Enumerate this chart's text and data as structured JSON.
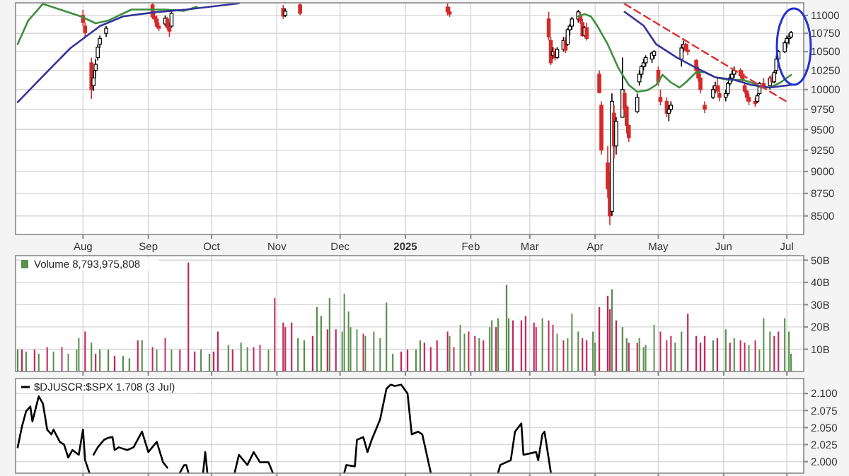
{
  "chart_data": [
    {
      "type": "candlestick",
      "log": true,
      "grid": true,
      "xlim": [
        "2024-06-30",
        "2025-07-09"
      ],
      "xticks": [
        {
          "value": "2024-08-01",
          "label": "Aug"
        },
        {
          "value": "2024-09-01",
          "label": "Sep"
        },
        {
          "value": "2024-10-01",
          "label": "Oct"
        },
        {
          "value": "2024-11-01",
          "label": "Nov"
        },
        {
          "value": "2024-12-01",
          "label": "Dec"
        },
        {
          "value": "2025-01-01",
          "label": "2025"
        },
        {
          "value": "2025-02-01",
          "label": "Feb"
        },
        {
          "value": "2025-03-01",
          "label": "Mar"
        },
        {
          "value": "2025-04-01",
          "label": "Apr"
        },
        {
          "value": "2025-05-01",
          "label": "May"
        },
        {
          "value": "2025-06-01",
          "label": "Jun"
        },
        {
          "value": "2025-07-01",
          "label": "Jul"
        }
      ],
      "ylim": [
        8300,
        11180
      ],
      "yticks": [
        8500,
        8750,
        9000,
        9250,
        9500,
        9750,
        10000,
        10250,
        10500,
        10750,
        11000
      ],
      "x": [
        "2024-08-01",
        "2024-08-02",
        "2024-08-05",
        "2024-08-06",
        "2024-08-07",
        "2024-08-08",
        "2024-08-09",
        "2024-08-12",
        "2024-09-03",
        "2024-09-04",
        "2024-09-05",
        "2024-09-06",
        "2024-09-09",
        "2024-09-10",
        "2024-09-11",
        "2024-09-12",
        "2024-11-04",
        "2024-11-05",
        "2024-11-12",
        "2025-01-21",
        "2025-01-22",
        "2025-03-10",
        "2025-03-11",
        "2025-03-12",
        "2025-03-13",
        "2025-03-14",
        "2025-03-17",
        "2025-03-18",
        "2025-03-19",
        "2025-03-20",
        "2025-03-21",
        "2025-03-24",
        "2025-03-25",
        "2025-03-26",
        "2025-03-27",
        "2025-03-28",
        "2025-04-03",
        "2025-04-04",
        "2025-04-07",
        "2025-04-08",
        "2025-04-09",
        "2025-04-10",
        "2025-04-11",
        "2025-04-14",
        "2025-04-15",
        "2025-04-16",
        "2025-04-17",
        "2025-04-21",
        "2025-04-22",
        "2025-04-23",
        "2025-04-24",
        "2025-04-25",
        "2025-04-28",
        "2025-04-29",
        "2025-05-01",
        "2025-05-02",
        "2025-05-05",
        "2025-05-06",
        "2025-05-07",
        "2025-05-12",
        "2025-05-13",
        "2025-05-14",
        "2025-05-15",
        "2025-05-19",
        "2025-05-20",
        "2025-05-21",
        "2025-05-23",
        "2025-05-27",
        "2025-05-28",
        "2025-05-29",
        "2025-05-30",
        "2025-06-02",
        "2025-06-03",
        "2025-06-04",
        "2025-06-05",
        "2025-06-06",
        "2025-06-09",
        "2025-06-10",
        "2025-06-11",
        "2025-06-12",
        "2025-06-13",
        "2025-06-16",
        "2025-06-17",
        "2025-06-18",
        "2025-06-20",
        "2025-06-23",
        "2025-06-24",
        "2025-06-25",
        "2025-06-26",
        "2025-06-27",
        "2025-06-30",
        "2025-07-01",
        "2025-07-02",
        "2025-07-03"
      ],
      "ohlc": [
        [
          11000,
          11080,
          10850,
          10900
        ],
        [
          10850,
          10900,
          10700,
          10760
        ],
        [
          10350,
          10420,
          9880,
          10000
        ],
        [
          10050,
          10250,
          9980,
          10150
        ],
        [
          10250,
          10400,
          10150,
          10330
        ],
        [
          10420,
          10600,
          10380,
          10560
        ],
        [
          10600,
          10720,
          10550,
          10680
        ],
        [
          10750,
          10850,
          10700,
          10820
        ],
        [
          11150,
          11170,
          10950,
          10980
        ],
        [
          10980,
          11050,
          10900,
          10950
        ],
        [
          10950,
          11000,
          10820,
          10850
        ],
        [
          10850,
          10900,
          10780,
          10820
        ],
        [
          10880,
          11000,
          10850,
          10960
        ],
        [
          10950,
          10980,
          10800,
          10830
        ],
        [
          10830,
          10900,
          10700,
          10780
        ],
        [
          10850,
          11060,
          10830,
          11030
        ],
        [
          11100,
          11150,
          10950,
          10990
        ],
        [
          11000,
          11100,
          10980,
          11060
        ],
        [
          11150,
          11170,
          11000,
          11030
        ],
        [
          11120,
          11170,
          11000,
          11050
        ],
        [
          11050,
          11120,
          10980,
          11020
        ],
        [
          10950,
          11050,
          10650,
          10700
        ],
        [
          10650,
          10700,
          10320,
          10350
        ],
        [
          10450,
          10560,
          10400,
          10500
        ],
        [
          10500,
          10550,
          10380,
          10420
        ],
        [
          10420,
          10560,
          10400,
          10530
        ],
        [
          10530,
          10700,
          10500,
          10650
        ],
        [
          10650,
          10700,
          10480,
          10520
        ],
        [
          10600,
          10820,
          10580,
          10800
        ],
        [
          10800,
          10880,
          10720,
          10850
        ],
        [
          10850,
          10980,
          10800,
          10950
        ],
        [
          10950,
          11080,
          10900,
          11050
        ],
        [
          11000,
          11050,
          10880,
          10920
        ],
        [
          10900,
          10950,
          10700,
          10720
        ],
        [
          10720,
          10850,
          10700,
          10830
        ],
        [
          10830,
          10900,
          10650,
          10680
        ],
        [
          10200,
          10250,
          9950,
          9960
        ],
        [
          9800,
          9850,
          9200,
          9250
        ],
        [
          9100,
          9300,
          8700,
          8800
        ],
        [
          8900,
          9000,
          8400,
          8500
        ],
        [
          8550,
          9950,
          8500,
          9850
        ],
        [
          9700,
          9800,
          9150,
          9300
        ],
        [
          9300,
          9650,
          9200,
          9600
        ],
        [
          9650,
          10420,
          9650,
          10000
        ],
        [
          9950,
          10000,
          9700,
          9750
        ],
        [
          9780,
          9800,
          9450,
          9550
        ],
        [
          9550,
          9560,
          9350,
          9400
        ],
        [
          9720,
          9950,
          9700,
          9900
        ],
        [
          10100,
          10250,
          10050,
          10200
        ],
        [
          10200,
          10320,
          10150,
          10300
        ],
        [
          10300,
          10400,
          10250,
          10350
        ],
        [
          10350,
          10450,
          10300,
          10420
        ],
        [
          10400,
          10500,
          10350,
          10480
        ],
        [
          10450,
          10520,
          10400,
          10500
        ],
        [
          10250,
          10300,
          10050,
          10100
        ],
        [
          9900,
          10000,
          9800,
          9850
        ],
        [
          9850,
          9900,
          9650,
          9700
        ],
        [
          9700,
          9800,
          9600,
          9750
        ],
        [
          9750,
          9850,
          9720,
          9800
        ],
        [
          10400,
          10600,
          10300,
          10550
        ],
        [
          10550,
          10650,
          10500,
          10600
        ],
        [
          10600,
          10620,
          10500,
          10520
        ],
        [
          10520,
          10600,
          10450,
          10500
        ],
        [
          10380,
          10400,
          10200,
          10250
        ],
        [
          10250,
          10300,
          10100,
          10150
        ],
        [
          10150,
          10200,
          9950,
          10000
        ],
        [
          9800,
          9850,
          9700,
          9750
        ],
        [
          9900,
          10050,
          9880,
          10000
        ],
        [
          10000,
          10100,
          9950,
          10050
        ],
        [
          10050,
          10150,
          9950,
          9980
        ],
        [
          9950,
          10050,
          9850,
          9900
        ],
        [
          9900,
          10000,
          9850,
          9950
        ],
        [
          9950,
          10100,
          9920,
          10080
        ],
        [
          10080,
          10200,
          10050,
          10150
        ],
        [
          10150,
          10250,
          10100,
          10200
        ],
        [
          10200,
          10300,
          10150,
          10250
        ],
        [
          10250,
          10280,
          10150,
          10180
        ],
        [
          10200,
          10250,
          10100,
          10120
        ],
        [
          10050,
          10100,
          9950,
          9980
        ],
        [
          9980,
          10000,
          9850,
          9900
        ],
        [
          9900,
          9950,
          9800,
          9850
        ],
        [
          9850,
          9900,
          9780,
          9820
        ],
        [
          9850,
          9950,
          9830,
          9920
        ],
        [
          9950,
          10100,
          9930,
          10080
        ],
        [
          10080,
          10150,
          10020,
          10050
        ],
        [
          10050,
          10180,
          10000,
          10150
        ],
        [
          10150,
          10200,
          10080,
          10100
        ],
        [
          10100,
          10250,
          10080,
          10220
        ],
        [
          10250,
          10450,
          10200,
          10400
        ],
        [
          10400,
          10520,
          10350,
          10500
        ],
        [
          10500,
          10650,
          10480,
          10620
        ],
        [
          10620,
          10720,
          10550,
          10680
        ],
        [
          10680,
          10750,
          10600,
          10700
        ],
        [
          10700,
          10780,
          10680,
          10760
        ]
      ],
      "colors": [
        "#d42a2a",
        "#d42a2a",
        "#d42a2a",
        "#000000",
        "#000000",
        "#000000",
        "#000000",
        "#000000",
        "#d42a2a",
        "#d42a2a",
        "#d42a2a",
        "#d42a2a",
        "#000000",
        "#d42a2a",
        "#d42a2a",
        "#000000",
        "#d42a2a",
        "#000000",
        "#d42a2a",
        "#d42a2a",
        "#d42a2a",
        "#d42a2a",
        "#d42a2a",
        "#000000",
        "#d42a2a",
        "#000000",
        "#000000",
        "#d42a2a",
        "#000000",
        "#000000",
        "#000000",
        "#000000",
        "#d42a2a",
        "#d42a2a",
        "#000000",
        "#d42a2a",
        "#d42a2a",
        "#d42a2a",
        "#d42a2a",
        "#d42a2a",
        "#000000",
        "#d42a2a",
        "#000000",
        "#000000",
        "#d42a2a",
        "#d42a2a",
        "#d42a2a",
        "#000000",
        "#000000",
        "#000000",
        "#000000",
        "#000000",
        "#000000",
        "#000000",
        "#d42a2a",
        "#d42a2a",
        "#d42a2a",
        "#000000",
        "#000000",
        "#000000",
        "#000000",
        "#d42a2a",
        "#d42a2a",
        "#d42a2a",
        "#d42a2a",
        "#d42a2a",
        "#d42a2a",
        "#000000",
        "#000000",
        "#d42a2a",
        "#d42a2a",
        "#000000",
        "#000000",
        "#000000",
        "#000000",
        "#000000",
        "#d42a2a",
        "#d42a2a",
        "#d42a2a",
        "#d42a2a",
        "#d42a2a",
        "#d42a2a",
        "#000000",
        "#000000",
        "#d42a2a",
        "#000000",
        "#d42a2a",
        "#000000",
        "#000000",
        "#000000",
        "#000000",
        "#000000",
        "#000000",
        "#000000"
      ],
      "series": [
        {
          "type": "line",
          "color": "#3f8f3f",
          "x": [
            "2024-07-01",
            "2024-07-06",
            "2024-07-13",
            "2024-07-31",
            "2024-08-07",
            "2024-08-13",
            "2024-08-24",
            "2024-09-09",
            "2024-09-18",
            "2024-09-24",
            "2025-03-18",
            "2025-03-24",
            "2025-03-27",
            "2025-03-30",
            "2025-04-02",
            "2025-04-07",
            "2025-04-12",
            "2025-04-17",
            "2025-04-21",
            "2025-04-26",
            "2025-04-30",
            "2025-05-03",
            "2025-05-07",
            "2025-05-11",
            "2025-05-14",
            "2025-05-19",
            "2025-05-23",
            "2025-05-28",
            "2025-06-03",
            "2025-06-10",
            "2025-06-14",
            "2025-06-19",
            "2025-06-23",
            "2025-06-28",
            "2025-07-03"
          ],
          "values": [
            10602,
            10928,
            11165,
            10986,
            10889,
            10928,
            11084,
            11084,
            11065,
            11124,
            null,
            10986,
            11020,
            10986,
            10857,
            10600,
            10283,
            10060,
            9972,
            9992,
            10060,
            10191,
            10092,
            10026,
            10092,
            10226,
            10226,
            10159,
            10126,
            10126,
            10092,
            10026,
            10026,
            10092,
            10191
          ]
        },
        {
          "type": "line",
          "color": "#33339a",
          "x": [
            "2024-07-01",
            "2024-07-15",
            "2024-07-26",
            "2024-08-09",
            "2024-08-20",
            "2024-09-04",
            "2024-09-19",
            "2024-10-14",
            "2025-04-08",
            "2025-04-15",
            "2025-04-24",
            "2025-04-30",
            "2025-05-10",
            "2025-05-19",
            "2025-05-28",
            "2025-06-06",
            "2025-06-14",
            "2025-06-23",
            "2025-07-03"
          ],
          "values": [
            9839,
            10231,
            10546,
            10850,
            10986,
            11045,
            11084,
            11173,
            null,
            11051,
            10857,
            10600,
            10416,
            10283,
            10159,
            10126,
            10060,
            10026,
            10060
          ]
        },
        {
          "type": "line",
          "color": "#e03030",
          "line_style": "dashed",
          "x": [
            "2025-04-15",
            "2025-07-01"
          ],
          "values": [
            11165,
            9844
          ]
        }
      ]
    },
    {
      "type": "bar",
      "grid": true,
      "tick_labels": "y",
      "legend": "top left",
      "xlim": [
        "2024-06-30",
        "2025-07-09"
      ],
      "xticks": [
        "2024-08-01",
        "2024-09-01",
        "2024-10-01",
        "2024-11-01",
        "2024-12-01",
        "2025-01-01",
        "2025-02-01",
        "2025-03-01",
        "2025-04-01",
        "2025-05-01",
        "2025-06-01",
        "2025-07-01"
      ],
      "ylim": [
        0,
        52
      ],
      "yticks": [
        {
          "value": 10,
          "label": "10B"
        },
        {
          "value": 20,
          "label": "20B"
        },
        {
          "value": 30,
          "label": "30B"
        },
        {
          "value": 40,
          "label": "40B"
        },
        {
          "value": 50,
          "label": "50B"
        }
      ],
      "x": [
        "2024-07-01",
        "2024-07-03",
        "2024-07-05",
        "2024-07-09",
        "2024-07-11",
        "2024-07-15",
        "2024-07-18",
        "2024-07-22",
        "2024-07-25",
        "2024-07-29",
        "2024-07-30",
        "2024-08-02",
        "2024-08-05",
        "2024-08-07",
        "2024-08-09",
        "2024-08-13",
        "2024-08-16",
        "2024-08-20",
        "2024-08-23",
        "2024-08-27",
        "2024-08-29",
        "2024-09-03",
        "2024-09-05",
        "2024-09-09",
        "2024-09-12",
        "2024-09-16",
        "2024-09-20",
        "2024-09-23",
        "2024-09-26",
        "2024-09-30",
        "2024-10-02",
        "2024-10-04",
        "2024-10-09",
        "2024-10-11",
        "2024-10-15",
        "2024-10-18",
        "2024-10-21",
        "2024-10-24",
        "2024-10-28",
        "2024-10-31",
        "2024-11-04",
        "2024-11-05",
        "2024-11-08",
        "2024-11-11",
        "2024-11-14",
        "2024-11-18",
        "2024-11-20",
        "2024-11-22",
        "2024-11-25",
        "2024-11-26",
        "2024-11-29",
        "2024-12-02",
        "2024-12-03",
        "2024-12-05",
        "2024-12-06",
        "2024-12-09",
        "2024-12-12",
        "2024-12-13",
        "2024-12-17",
        "2024-12-20",
        "2024-12-23",
        "2024-12-26",
        "2024-12-30",
        "2025-01-02",
        "2025-01-06",
        "2025-01-08",
        "2025-01-10",
        "2025-01-13",
        "2025-01-16",
        "2025-01-21",
        "2025-01-22",
        "2025-01-24",
        "2025-01-27",
        "2025-01-29",
        "2025-01-31",
        "2025-02-03",
        "2025-02-05",
        "2025-02-07",
        "2025-02-10",
        "2025-02-11",
        "2025-02-13",
        "2025-02-14",
        "2025-02-18",
        "2025-02-19",
        "2025-02-21",
        "2025-02-25",
        "2025-02-27",
        "2025-03-03",
        "2025-03-04",
        "2025-03-07",
        "2025-03-10",
        "2025-03-12",
        "2025-03-14",
        "2025-03-17",
        "2025-03-19",
        "2025-03-21",
        "2025-03-24",
        "2025-03-26",
        "2025-03-28",
        "2025-03-31",
        "2025-04-01",
        "2025-04-03",
        "2025-04-07",
        "2025-04-08",
        "2025-04-09",
        "2025-04-11",
        "2025-04-14",
        "2025-04-16",
        "2025-04-17",
        "2025-04-21",
        "2025-04-22",
        "2025-04-24",
        "2025-04-25",
        "2025-04-29",
        "2025-05-02",
        "2025-05-05",
        "2025-05-07",
        "2025-05-09",
        "2025-05-12",
        "2025-05-15",
        "2025-05-19",
        "2025-05-21",
        "2025-05-23",
        "2025-05-27",
        "2025-05-29",
        "2025-06-02",
        "2025-06-04",
        "2025-06-06",
        "2025-06-09",
        "2025-06-11",
        "2025-06-13",
        "2025-06-16",
        "2025-06-18",
        "2025-06-20",
        "2025-06-23",
        "2025-06-25",
        "2025-06-27",
        "2025-06-30",
        "2025-07-02",
        "2025-07-03"
      ],
      "series": [
        {
          "name": "Volume 8,793,975,808",
          "values": [
            10,
            10,
            9,
            10,
            8,
            11,
            9,
            11,
            8,
            10,
            15,
            18,
            13,
            8,
            10,
            10,
            7,
            7,
            6,
            14,
            14,
            11,
            10,
            15,
            10,
            10,
            49,
            9,
            10,
            8,
            9,
            18,
            12,
            10,
            13,
            11,
            11,
            12,
            10,
            33,
            22,
            20,
            22,
            15,
            14,
            16,
            29,
            25,
            19,
            33,
            19,
            18,
            35,
            27,
            20,
            19,
            17,
            16,
            18,
            15,
            31,
            8,
            9,
            10,
            10,
            14,
            13,
            11,
            14,
            18,
            16,
            11,
            21,
            17,
            18,
            16,
            15,
            14,
            20,
            23,
            20,
            24,
            39,
            24,
            23,
            23,
            25,
            22,
            20,
            24,
            23,
            21,
            17,
            14,
            15,
            26,
            18,
            15,
            14,
            18,
            13,
            29,
            34,
            28,
            37,
            23,
            20,
            15,
            13,
            13,
            15,
            11,
            12,
            21,
            18,
            14,
            16,
            13,
            18,
            26,
            16,
            13,
            16,
            14,
            15,
            19,
            13,
            15,
            14,
            13,
            12,
            14,
            10,
            24,
            18,
            16,
            18,
            24,
            18,
            8
          ],
          "colors": [
            "#5a8f4f",
            "#c0265c",
            "#5a8f4f",
            "#c0265c",
            "#5a8f4f",
            "#c0265c",
            "#5a8f4f",
            "#c0265c",
            "#5a8f4f",
            "#5a8f4f",
            "#5a8f4f",
            "#c0265c",
            "#5a8f4f",
            "#c0265c",
            "#5a8f4f",
            "#5a8f4f",
            "#c0265c",
            "#5a8f4f",
            "#5a8f4f",
            "#c0265c",
            "#5a8f4f",
            "#c0265c",
            "#5a8f4f",
            "#c0265c",
            "#5a8f4f",
            "#c0265c",
            "#c0265c",
            "#c0265c",
            "#5a8f4f",
            "#5a8f4f",
            "#c0265c",
            "#c0265c",
            "#5a8f4f",
            "#c0265c",
            "#5a8f4f",
            "#5a8f4f",
            "#c0265c",
            "#c0265c",
            "#5a8f4f",
            "#c0265c",
            "#c0265c",
            "#c0265c",
            "#c0265c",
            "#5a8f4f",
            "#5a8f4f",
            "#c0265c",
            "#5a8f4f",
            "#5a8f4f",
            "#c0265c",
            "#5a8f4f",
            "#c0265c",
            "#5a8f4f",
            "#5a8f4f",
            "#5a8f4f",
            "#5a8f4f",
            "#5a8f4f",
            "#c0265c",
            "#5a8f4f",
            "#5a8f4f",
            "#5a8f4f",
            "#5a8f4f",
            "#5a8f4f",
            "#c0265c",
            "#c0265c",
            "#5a8f4f",
            "#5a8f4f",
            "#c0265c",
            "#c0265c",
            "#c0265c",
            "#c0265c",
            "#5a8f4f",
            "#c0265c",
            "#5a8f4f",
            "#5a8f4f",
            "#c0265c",
            "#c0265c",
            "#5a8f4f",
            "#c0265c",
            "#5a8f4f",
            "#5a8f4f",
            "#c0265c",
            "#5a8f4f",
            "#5a8f4f",
            "#5a8f4f",
            "#c0265c",
            "#c0265c",
            "#c0265c",
            "#c0265c",
            "#c0265c",
            "#5a8f4f",
            "#c0265c",
            "#c0265c",
            "#5a8f4f",
            "#c0265c",
            "#5a8f4f",
            "#5a8f4f",
            "#5a8f4f",
            "#c0265c",
            "#c0265c",
            "#5a8f4f",
            "#5a8f4f",
            "#c0265c",
            "#c0265c",
            "#c0265c",
            "#5a8f4f",
            "#c0265c",
            "#5a8f4f",
            "#5a8f4f",
            "#c0265c",
            "#c0265c",
            "#5a8f4f",
            "#5a8f4f",
            "#5a8f4f",
            "#5a8f4f",
            "#c0265c",
            "#c0265c",
            "#c0265c",
            "#5a8f4f",
            "#5a8f4f",
            "#c0265c",
            "#c0265c",
            "#c0265c",
            "#c0265c",
            "#5a8f4f",
            "#c0265c",
            "#5a8f4f",
            "#c0265c",
            "#5a8f4f",
            "#c0265c",
            "#c0265c",
            "#5a8f4f",
            "#c0265c",
            "#5a8f4f",
            "#5a8f4f",
            "#5a8f4f",
            "#c0265c",
            "#c0265c",
            "#5a8f4f",
            "#5a8f4f",
            "#5a8f4f"
          ]
        }
      ]
    },
    {
      "type": "line",
      "grid": true,
      "tick_labels": "y",
      "legend": "top left",
      "xlim": [
        "2024-06-30",
        "2025-07-09"
      ],
      "xticks": [
        "2024-08-01",
        "2024-09-01",
        "2024-10-01",
        "2024-11-01",
        "2024-12-01",
        "2025-01-01",
        "2025-02-01",
        "2025-03-01",
        "2025-04-01",
        "2025-05-01",
        "2025-06-01",
        "2025-07-01"
      ],
      "ylim": [
        1.983,
        2.122
      ],
      "yticks": [
        {
          "value": 2,
          "label": "2.000"
        },
        {
          "value": 2.025,
          "label": "2.025"
        },
        {
          "value": 2.05,
          "label": "2.050"
        },
        {
          "value": 2.075,
          "label": "2.075"
        },
        {
          "value": 2.1,
          "label": "2.100"
        }
      ],
      "series": [
        {
          "name": "$DJUSCR:$SPX 1.708 (3 Jul)",
          "color": "#000000",
          "x": [
            "2024-07-01",
            "2024-07-03",
            "2024-07-05",
            "2024-07-07",
            "2024-07-08",
            "2024-07-11",
            "2024-07-13",
            "2024-07-15",
            "2024-07-17",
            "2024-07-18",
            "2024-07-21",
            "2024-07-23",
            "2024-07-25",
            "2024-07-27",
            "2024-07-30",
            "2024-08-01",
            "2024-08-02",
            "2024-08-04",
            "2024-08-05",
            "2024-08-06",
            "2024-08-08",
            "2024-08-11",
            "2024-08-13",
            "2024-08-15",
            "2024-08-16",
            "2024-08-18",
            "2024-08-22",
            "2024-08-25",
            "2024-08-29",
            "2024-09-01",
            "2024-09-05",
            "2024-09-08",
            "2024-09-10",
            "2024-09-11",
            "2024-09-16",
            "2024-09-18",
            "2024-09-19",
            "2024-09-20",
            "2024-09-21",
            "2024-09-27",
            "2024-09-28",
            "2024-09-29",
            "2024-09-30",
            "2024-10-12",
            "2024-10-14",
            "2024-10-18",
            "2024-10-21",
            "2024-10-24",
            "2024-10-28",
            "2024-10-30",
            "2024-10-31",
            "2024-12-03",
            "2024-12-04",
            "2024-12-08",
            "2024-12-09",
            "2024-12-12",
            "2024-12-14",
            "2024-12-16",
            "2024-12-20",
            "2024-12-23",
            "2024-12-25",
            "2024-12-27",
            "2024-12-30",
            "2025-01-02",
            "2025-01-04",
            "2025-01-07",
            "2025-01-09",
            "2025-01-13",
            "2025-01-14",
            "2025-02-14",
            "2025-02-15",
            "2025-02-20",
            "2025-02-22",
            "2025-02-25",
            "2025-02-26",
            "2025-03-04",
            "2025-03-05",
            "2025-03-07",
            "2025-03-08",
            "2025-03-11"
          ],
          "values": [
            2.021,
            2.051,
            2.074,
            2.081,
            2.059,
            2.096,
            2.085,
            2.047,
            2.04,
            2.047,
            2.029,
            2.025,
            2.006,
            2.017,
            2.01,
            2.047,
            2.002,
            1.984,
            null,
            2.01,
            2.021,
            2.032,
            2.035,
            2.036,
            2.017,
            2.021,
            2.017,
            2.021,
            2.044,
            2.014,
            2.029,
            1.999,
            1.991,
            null,
            1.984,
            1.995,
            1.995,
            1.984,
            null,
            1.984,
            2.014,
            1.984,
            null,
            1.984,
            2.01,
            1.995,
            2.014,
            1.999,
            1.999,
            1.984,
            null,
            1.984,
            1.995,
            1.993,
            2.032,
            2.036,
            2.014,
            2.032,
            2.062,
            2.107,
            2.113,
            2.111,
            2.113,
            2.1,
            2.04,
            2.044,
            2.04,
            1.984,
            null,
            1.984,
            1.995,
            2.002,
            2.044,
            2.056,
            2.01,
            2.014,
            2.002,
            2.04,
            2.044,
            1.984
          ]
        }
      ]
    }
  ]
}
